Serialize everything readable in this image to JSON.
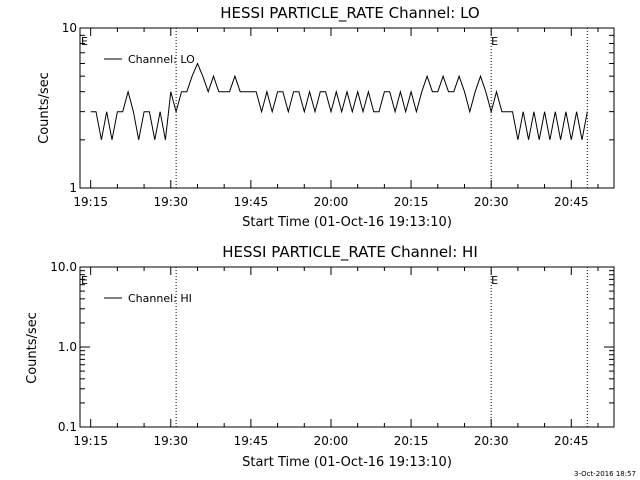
{
  "chart_data": [
    {
      "type": "line",
      "title": "HESSI PARTICLE_RATE Channel: LO",
      "xlabel": "Start Time (01-Oct-16 19:13:10)",
      "ylabel": "Counts/sec",
      "yscale": "log",
      "xlim": [
        "19:13",
        "20:53"
      ],
      "ylim": [
        1,
        10
      ],
      "x_ticks": [
        "19:15",
        "19:30",
        "19:45",
        "20:00",
        "20:15",
        "20:30",
        "20:45"
      ],
      "y_ticks": [
        "1",
        "10"
      ],
      "legend": {
        "position": "top-left",
        "label": "Channel: LO"
      },
      "grid": false,
      "event_markers": [
        {
          "time": "19:13",
          "label": "E"
        },
        {
          "time": "19:31",
          "label": ""
        },
        {
          "time": "20:30",
          "label": "E"
        },
        {
          "time": "20:48",
          "label": ""
        }
      ],
      "series": [
        {
          "name": "Channel: LO",
          "x": [
            "19:15",
            "19:16",
            "19:17",
            "19:18",
            "19:19",
            "19:20",
            "19:21",
            "19:22",
            "19:23",
            "19:24",
            "19:25",
            "19:26",
            "19:27",
            "19:28",
            "19:29",
            "19:30",
            "19:31",
            "19:32",
            "19:33",
            "19:34",
            "19:35",
            "19:36",
            "19:37",
            "19:38",
            "19:39",
            "19:40",
            "19:41",
            "19:42",
            "19:43",
            "19:44",
            "19:45",
            "19:46",
            "19:47",
            "19:48",
            "19:49",
            "19:50",
            "19:51",
            "19:52",
            "19:53",
            "19:54",
            "19:55",
            "19:56",
            "19:57",
            "19:58",
            "19:59",
            "20:00",
            "20:01",
            "20:02",
            "20:03",
            "20:04",
            "20:05",
            "20:06",
            "20:07",
            "20:08",
            "20:09",
            "20:10",
            "20:11",
            "20:12",
            "20:13",
            "20:14",
            "20:15",
            "20:16",
            "20:17",
            "20:18",
            "20:19",
            "20:20",
            "20:21",
            "20:22",
            "20:23",
            "20:24",
            "20:25",
            "20:26",
            "20:27",
            "20:28",
            "20:29",
            "20:30",
            "20:31",
            "20:32",
            "20:33",
            "20:34",
            "20:35",
            "20:36",
            "20:37",
            "20:38",
            "20:39",
            "20:40",
            "20:41",
            "20:42",
            "20:43",
            "20:44",
            "20:45",
            "20:46",
            "20:47",
            "20:48"
          ],
          "y": [
            3,
            3,
            2,
            3,
            2,
            3,
            3,
            4,
            3,
            2,
            3,
            3,
            2,
            3,
            2,
            4,
            3,
            4,
            4,
            5,
            6,
            5,
            4,
            5,
            4,
            4,
            4,
            5,
            4,
            4,
            4,
            4,
            3,
            4,
            3,
            4,
            4,
            3,
            4,
            4,
            3,
            4,
            3,
            4,
            4,
            3,
            4,
            3,
            4,
            3,
            4,
            3,
            4,
            3,
            3,
            4,
            4,
            3,
            4,
            3,
            4,
            3,
            4,
            5,
            4,
            4,
            5,
            4,
            4,
            5,
            4,
            3,
            4,
            5,
            4,
            3,
            4,
            3,
            3,
            3,
            2,
            3,
            2,
            3,
            2,
            3,
            2,
            3,
            2,
            3,
            2,
            3,
            2,
            3
          ]
        }
      ]
    },
    {
      "type": "line",
      "title": "HESSI PARTICLE_RATE Channel: HI",
      "xlabel": "Start Time (01-Oct-16 19:13:10)",
      "ylabel": "Counts/sec",
      "yscale": "log",
      "xlim": [
        "19:13",
        "20:53"
      ],
      "ylim": [
        0.1,
        10
      ],
      "x_ticks": [
        "19:15",
        "19:30",
        "19:45",
        "20:00",
        "20:15",
        "20:30",
        "20:45"
      ],
      "y_ticks": [
        "0.1",
        "1.0",
        "10.0"
      ],
      "legend": {
        "position": "top-left",
        "label": "Channel: HI"
      },
      "grid": false,
      "event_markers": [
        {
          "time": "19:13",
          "label": "E"
        },
        {
          "time": "19:31",
          "label": ""
        },
        {
          "time": "20:30",
          "label": "E"
        },
        {
          "time": "20:48",
          "label": ""
        }
      ],
      "series": [
        {
          "name": "Channel: HI",
          "x": [],
          "y": []
        }
      ]
    }
  ],
  "footer": {
    "timestamp": "3-Oct-2016 18:57"
  }
}
